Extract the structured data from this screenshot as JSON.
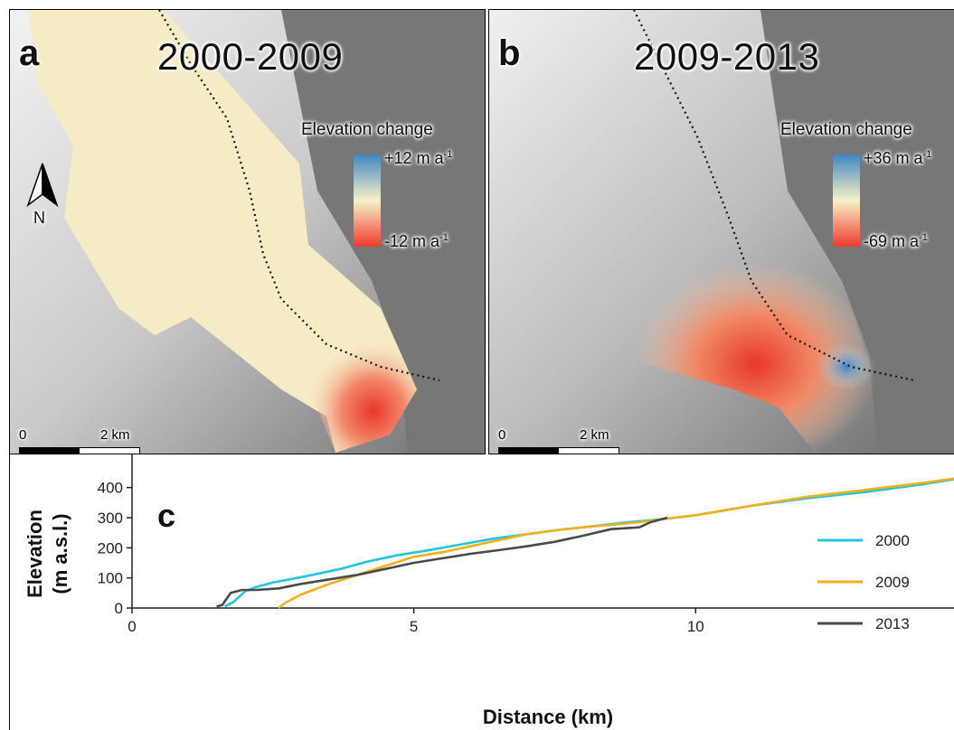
{
  "panels": {
    "a": {
      "letter": "a",
      "period": "2000-2009",
      "colorbar": {
        "title": "Elevation change",
        "max": "+12 m a",
        "min": "-12 m a",
        "unit_exp": "-1"
      },
      "scale": {
        "zero": "0",
        "distance": "2 km"
      },
      "north": "N"
    },
    "b": {
      "letter": "b",
      "period": "2009-2013",
      "colorbar": {
        "title": "Elevation change",
        "max": "+36 m a",
        "min": "-69 m a",
        "unit_exp": "-1"
      },
      "scale": {
        "zero": "0",
        "distance": "2 km"
      }
    },
    "c": {
      "letter": "c"
    }
  },
  "colors": {
    "cb_high": "#3f86c4",
    "cb_mid": "#f7f2c6",
    "cb_low": "#ef3b2c",
    "series_2000": "#23c4e0",
    "series_2009": "#f2b01c",
    "series_2013": "#4a4a4a"
  },
  "chart_data": {
    "type": "line",
    "title": "",
    "xlabel": "Distance (km)",
    "ylabel": "Elevation\n(m a.s.l.)",
    "xlim": [
      0,
      14.6
    ],
    "ylim": [
      0,
      480
    ],
    "xticks": [
      0,
      5,
      10
    ],
    "yticks": [
      0,
      100,
      200,
      300,
      400
    ],
    "legend_position": "right",
    "grid": false,
    "series": [
      {
        "name": "2000",
        "color": "#23c4e0",
        "x": [
          1.65,
          1.8,
          2.0,
          2.2,
          2.5,
          2.8,
          3.2,
          3.7,
          4.2,
          4.7,
          5.2,
          5.8,
          6.4,
          7.0,
          7.6,
          8.2,
          8.8,
          9.4,
          10.0,
          11.0,
          12.0,
          13.0,
          14.0,
          14.6
        ],
        "y": [
          5,
          20,
          55,
          70,
          85,
          95,
          110,
          130,
          155,
          175,
          190,
          210,
          230,
          245,
          260,
          272,
          285,
          295,
          308,
          340,
          365,
          385,
          410,
          428
        ]
      },
      {
        "name": "2009",
        "color": "#f2b01c",
        "x": [
          2.6,
          2.7,
          3.0,
          3.5,
          4.0,
          4.5,
          5.0,
          5.5,
          6.0,
          6.5,
          7.0,
          7.5,
          8.0,
          8.5,
          9.0,
          9.5,
          10.0,
          11.0,
          12.0,
          13.0,
          14.0,
          14.6
        ],
        "y": [
          0,
          15,
          45,
          80,
          110,
          140,
          170,
          185,
          205,
          225,
          245,
          258,
          268,
          276,
          285,
          297,
          308,
          340,
          370,
          392,
          415,
          430
        ]
      },
      {
        "name": "2013",
        "color": "#4a4a4a",
        "x": [
          1.5,
          1.6,
          1.75,
          1.95,
          2.2,
          2.6,
          3.0,
          3.5,
          4.0,
          4.5,
          5.0,
          5.5,
          6.0,
          6.5,
          7.0,
          7.5,
          8.0,
          8.5,
          9.0,
          9.2,
          9.5
        ],
        "y": [
          5,
          10,
          50,
          60,
          60,
          65,
          80,
          95,
          110,
          130,
          150,
          165,
          180,
          192,
          205,
          220,
          240,
          262,
          268,
          285,
          300
        ]
      }
    ]
  }
}
